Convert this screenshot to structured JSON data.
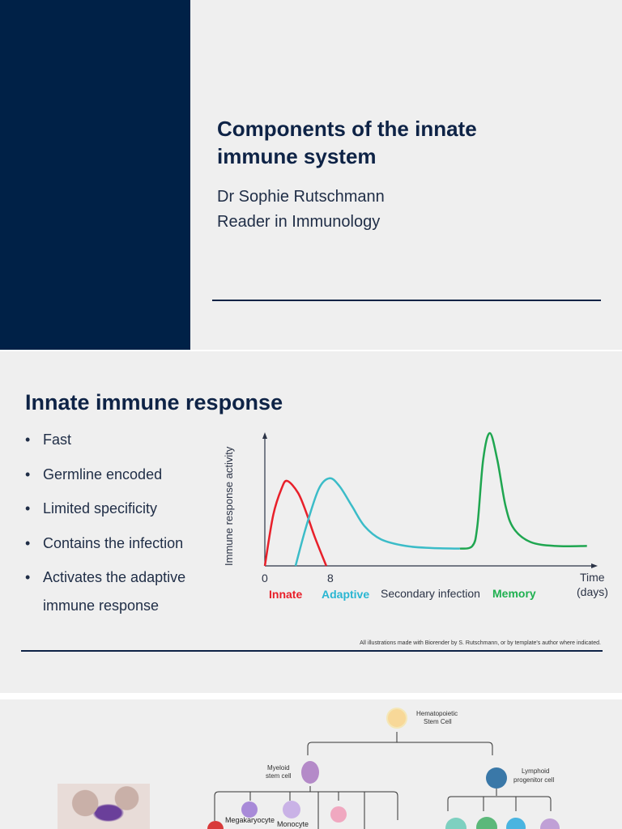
{
  "slide1": {
    "title_line1": "Components of the innate",
    "title_line2": "immune system",
    "author": "Dr Sophie Rutschmann",
    "role": "Reader in Immunology",
    "colors": {
      "navy": "#002147"
    }
  },
  "slide2": {
    "heading": "Innate immune response",
    "bullets": [
      "Fast",
      "Germline encoded",
      "Limited specificity",
      "Contains the infection",
      "Activates the adaptive"
    ],
    "bullet5_cont": "immune response",
    "credit": "All illustrations made with Biorender by S. Rutschmann, or by template's author where indicated.",
    "chart_data": {
      "type": "line",
      "ylabel": "Immune response activity",
      "xlabel_line1": "Time",
      "xlabel_line2": "(days)",
      "x_ticks": [
        "0",
        "8"
      ],
      "xlim": [
        0,
        40
      ],
      "ylim": [
        0,
        100
      ],
      "annotations": [
        {
          "text": "Innate",
          "color": "#e8202a"
        },
        {
          "text": "Adaptive",
          "color": "#29b6d2"
        },
        {
          "text": "Secondary infection",
          "color": "#2b3346"
        },
        {
          "text": "Memory",
          "color": "#1fb050"
        }
      ],
      "series": [
        {
          "name": "Innate",
          "color": "#e8202a",
          "x": [
            0,
            1,
            2,
            2.7,
            4,
            5,
            6,
            7.4
          ],
          "y": [
            0,
            38,
            58,
            64,
            55,
            40,
            22,
            0
          ]
        },
        {
          "name": "Adaptive",
          "color": "#3bbcc8",
          "x": [
            3.7,
            5,
            6.5,
            7.8,
            9,
            10.5,
            12,
            14,
            17,
            20,
            23.5
          ],
          "y": [
            0,
            30,
            58,
            66,
            60,
            45,
            30,
            20,
            15,
            13.5,
            13
          ]
        },
        {
          "name": "Memory",
          "color": "#1fa650",
          "x": [
            23.5,
            25,
            25.6,
            26.3,
            27.1,
            28,
            29,
            30,
            32,
            35,
            38.8
          ],
          "y": [
            13,
            15,
            30,
            80,
            100,
            80,
            45,
            28,
            18,
            15,
            15
          ]
        }
      ]
    }
  },
  "slide3": {
    "nodes": {
      "hsc_line1": "Hematopoietic",
      "hsc_line2": "Stem Cell",
      "myeloid_line1": "Myeloid",
      "myeloid_line2": "stem cell",
      "lymphoid_line1": "Lymphoid",
      "lymphoid_line2": "progenitor cell",
      "megakaryocyte": "Megakaryocyte",
      "monocyte": "Monocyte"
    }
  }
}
